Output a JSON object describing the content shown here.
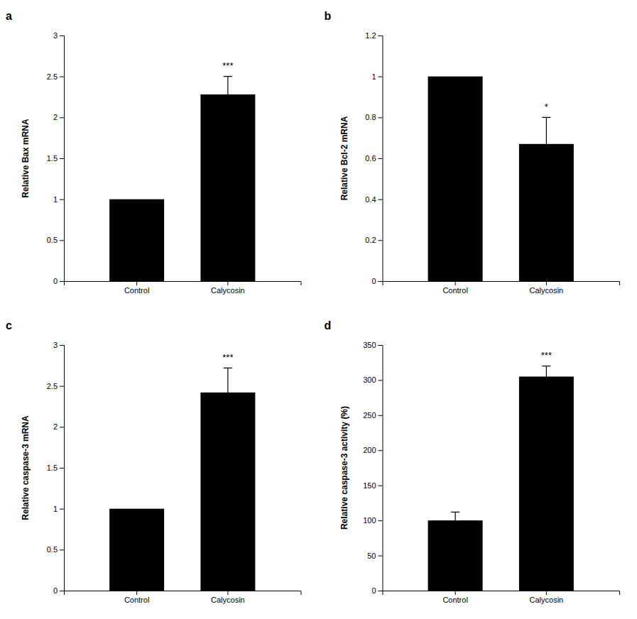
{
  "chart_data": [
    {
      "type": "bar",
      "title": "a",
      "categories": [
        "Control",
        "Calycosin"
      ],
      "values": [
        1.0,
        2.28
      ],
      "errors": [
        0.0,
        0.22
      ],
      "ylabel": "Relative Bax mRNA",
      "color": "#000000",
      "ylim": [
        0,
        3
      ],
      "yticks": [
        0,
        0.5,
        1,
        1.5,
        2,
        2.5,
        3
      ],
      "annotations": [
        {
          "text": "***",
          "x": "Calycosin"
        }
      ]
    },
    {
      "type": "bar",
      "title": "b",
      "categories": [
        "Control",
        "Calycosin"
      ],
      "values": [
        1.0,
        0.67
      ],
      "errors": [
        0.0,
        0.13
      ],
      "ylabel": "Relative Bcl-2 mRNA",
      "color": "#000000",
      "ylim": [
        0,
        1.2
      ],
      "yticks": [
        0,
        0.2,
        0.4,
        0.6,
        0.8,
        1,
        1.2
      ],
      "annotations": [
        {
          "text": "*",
          "x": "Calycosin"
        }
      ]
    },
    {
      "type": "bar",
      "title": "c",
      "categories": [
        "Control",
        "Calycosin"
      ],
      "values": [
        1.0,
        2.42
      ],
      "errors": [
        0.0,
        0.3
      ],
      "ylabel": "Relative caspase-3 mRNA",
      "color": "#000000",
      "ylim": [
        0,
        3
      ],
      "yticks": [
        0,
        0.5,
        1,
        1.5,
        2,
        2.5,
        3
      ],
      "annotations": [
        {
          "text": "***",
          "x": "Calycosin"
        }
      ]
    },
    {
      "type": "bar",
      "title": "d",
      "categories": [
        "Control",
        "Calycosin"
      ],
      "values": [
        100.0,
        305.0
      ],
      "errors": [
        12.0,
        15.0
      ],
      "ylabel": "Relative caspase-3 activity (%)",
      "color": "#000000",
      "ylim": [
        0,
        350
      ],
      "yticks": [
        0,
        50,
        100,
        150,
        200,
        250,
        300,
        350
      ],
      "annotations": [
        {
          "text": "***",
          "x": "Calycosin"
        }
      ]
    }
  ]
}
